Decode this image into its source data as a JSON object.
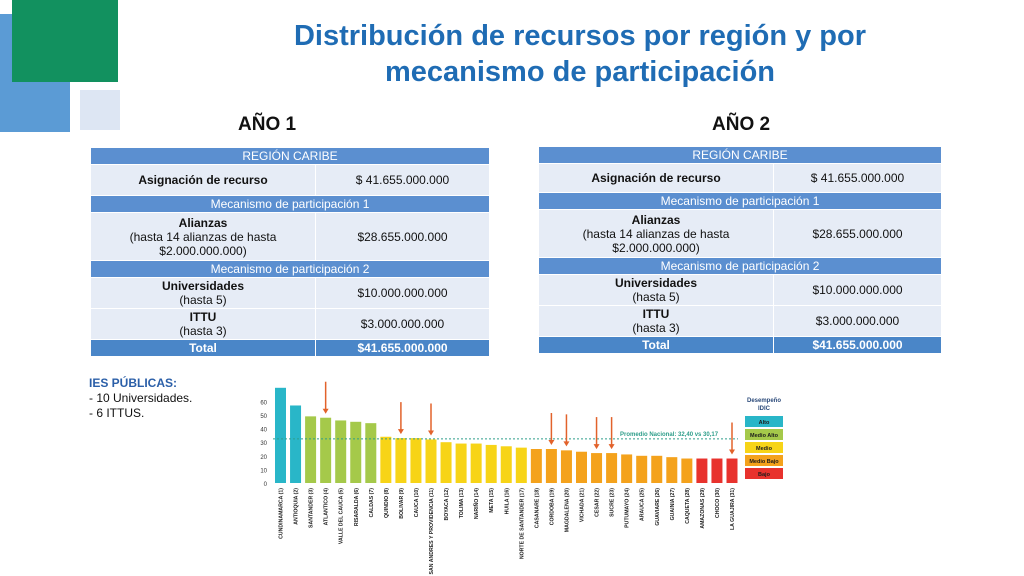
{
  "title_line1": "Distribución de recursos por región y por",
  "title_line2": "mecanismo de participación",
  "tables": [
    {
      "year": "AÑO 1",
      "region": "REGIÓN CARIBE",
      "asignacion_label": "Asignación de recurso",
      "asignacion_value": "$ 41.655.000.000",
      "mecanismo1": "Mecanismo de participación 1",
      "alianzas_title": "Alianzas",
      "alianzas_note1": "(hasta 14 alianzas de hasta",
      "alianzas_note2": "$2.000.000.000)",
      "alianzas_value": "$28.655.000.000",
      "mecanismo2": "Mecanismo de participación 2",
      "universidades_title": "Universidades",
      "universidades_note": "(hasta 5)",
      "universidades_value": "$10.000.000.000",
      "ittu_title": "ITTU",
      "ittu_note": "(hasta 3)",
      "ittu_value": "$3.000.000.000",
      "total_label": "Total",
      "total_value": "$41.655.000.000"
    },
    {
      "year": "AÑO 2",
      "region": "REGIÓN CARIBE",
      "asignacion_label": "Asignación de recurso",
      "asignacion_value": "$ 41.655.000.000",
      "mecanismo1": "Mecanismo de participación 1",
      "alianzas_title": "Alianzas",
      "alianzas_note1": "(hasta 14 alianzas de hasta",
      "alianzas_note2": "$2.000.000.000)",
      "alianzas_value": "$28.655.000.000",
      "mecanismo2": "Mecanismo de participación 2",
      "universidades_title": "Universidades",
      "universidades_note": "(hasta 5)",
      "universidades_value": "$10.000.000.000",
      "ittu_title": "ITTU",
      "ittu_note": "(hasta 3)",
      "ittu_value": "$3.000.000.000",
      "total_label": "Total",
      "total_value": "$41.655.000.000"
    }
  ],
  "ies": {
    "heading": "IES PÚBLICAS:",
    "line1": "- 10 Universidades.",
    "line2": "- 6 ITTUS."
  },
  "chart_data": {
    "type": "bar",
    "categories": [
      "CUNDINAMARCA (1)",
      "ANTIOQUIA (2)",
      "SANTANDER (3)",
      "ATLANTICO (4)",
      "VALLE DEL CAUCA (5)",
      "RISARALDA (6)",
      "CALDAS (7)",
      "QUINDIO (8)",
      "BOLIVAR (9)",
      "CAUCA (10)",
      "SAN ANDRES Y PROVIDENCIA (11)",
      "BOYACA (12)",
      "TOLIMA (13)",
      "NARIÑO (14)",
      "META (15)",
      "HUILA (16)",
      "NORTE DE SANTANDER (17)",
      "CASANARE (18)",
      "CORDOBA (19)",
      "MAGDALENA (20)",
      "VICHADA (21)",
      "CESAR (22)",
      "SUCRE (23)",
      "PUTUMAYO (24)",
      "ARAUCA (25)",
      "GUAVIARE (26)",
      "GUAINIA (27)",
      "CAQUETA (28)",
      "AMAZONAS (29)",
      "CHOCO (30)",
      "LA GUAJIRA (31)"
    ],
    "values": [
      70,
      57,
      49,
      48,
      46,
      45,
      44,
      34,
      33,
      33,
      32,
      30,
      29,
      29,
      28,
      27,
      26,
      25,
      25,
      24,
      23,
      22,
      22,
      21,
      20,
      20,
      19,
      18,
      18,
      18,
      18
    ],
    "levels": [
      "Alto",
      "Alto",
      "Medio Alto",
      "Medio Alto",
      "Medio Alto",
      "Medio Alto",
      "Medio Alto",
      "Medio",
      "Medio",
      "Medio",
      "Medio",
      "Medio",
      "Medio",
      "Medio",
      "Medio",
      "Medio",
      "Medio",
      "Medio Bajo",
      "Medio Bajo",
      "Medio Bajo",
      "Medio Bajo",
      "Medio Bajo",
      "Medio Bajo",
      "Medio Bajo",
      "Medio Bajo",
      "Medio Bajo",
      "Medio Bajo",
      "Medio Bajo",
      "Bajo",
      "Bajo",
      "Bajo"
    ],
    "arrow_marked": [
      "ATLANTICO (4)",
      "BOLIVAR (9)",
      "SAN ANDRES Y PROVIDENCIA (11)",
      "CORDOBA (19)",
      "MAGDALENA (20)",
      "CESAR (22)",
      "SUCRE (23)",
      "LA GUAJIRA (31)"
    ],
    "yticks": [
      0,
      10,
      20,
      30,
      40,
      50,
      60
    ],
    "ylim": [
      0,
      70
    ],
    "average_value": 32.4,
    "average_label": "Promedio Nacional: 32,40 vs 30,17",
    "legend_title1": "Desempeño",
    "legend_title2": "IDIC",
    "legend": [
      {
        "name": "Alto",
        "color": "#29b6c8"
      },
      {
        "name": "Medio Alto",
        "color": "#a5c94a"
      },
      {
        "name": "Medio",
        "color": "#f7d417"
      },
      {
        "name": "Medio Bajo",
        "color": "#f4a21c"
      },
      {
        "name": "Bajo",
        "color": "#e8322d"
      }
    ],
    "colors": {
      "Alto": "#29b6c8",
      "Medio Alto": "#a5c94a",
      "Medio": "#f7d417",
      "Medio Bajo": "#f4a21c",
      "Bajo": "#e8322d",
      "average_line": "#2e9e8a",
      "arrow": "#e2622b"
    }
  }
}
